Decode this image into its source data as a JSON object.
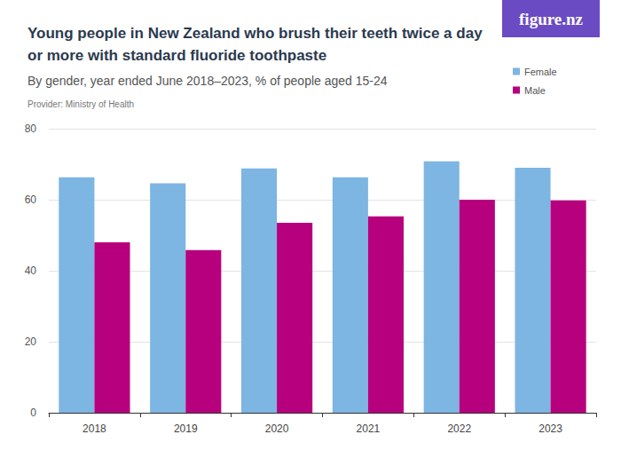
{
  "chart_data": {
    "type": "bar",
    "title": "Young people in New Zealand who brush their teeth twice a day or more with standard fluoride toothpaste",
    "subtitle": "By gender, year ended June 2018–2023, % of people aged 15-24",
    "annotations": [
      "Provider: Ministry of Health",
      "figure.nz"
    ],
    "categories": [
      "2018",
      "2019",
      "2020",
      "2021",
      "2022",
      "2023"
    ],
    "series": [
      {
        "name": "Female",
        "color": "#7db5e3",
        "values": [
          66.3,
          64.6,
          68.8,
          66.3,
          70.8,
          69.0
        ]
      },
      {
        "name": "Male",
        "color": "#b7007e",
        "values": [
          48.0,
          45.8,
          53.5,
          55.3,
          60.0,
          59.8
        ]
      }
    ],
    "ylim": [
      0,
      80
    ],
    "yticks": [
      0,
      20,
      40,
      60,
      80
    ],
    "grid": true,
    "legend": "top-right"
  }
}
